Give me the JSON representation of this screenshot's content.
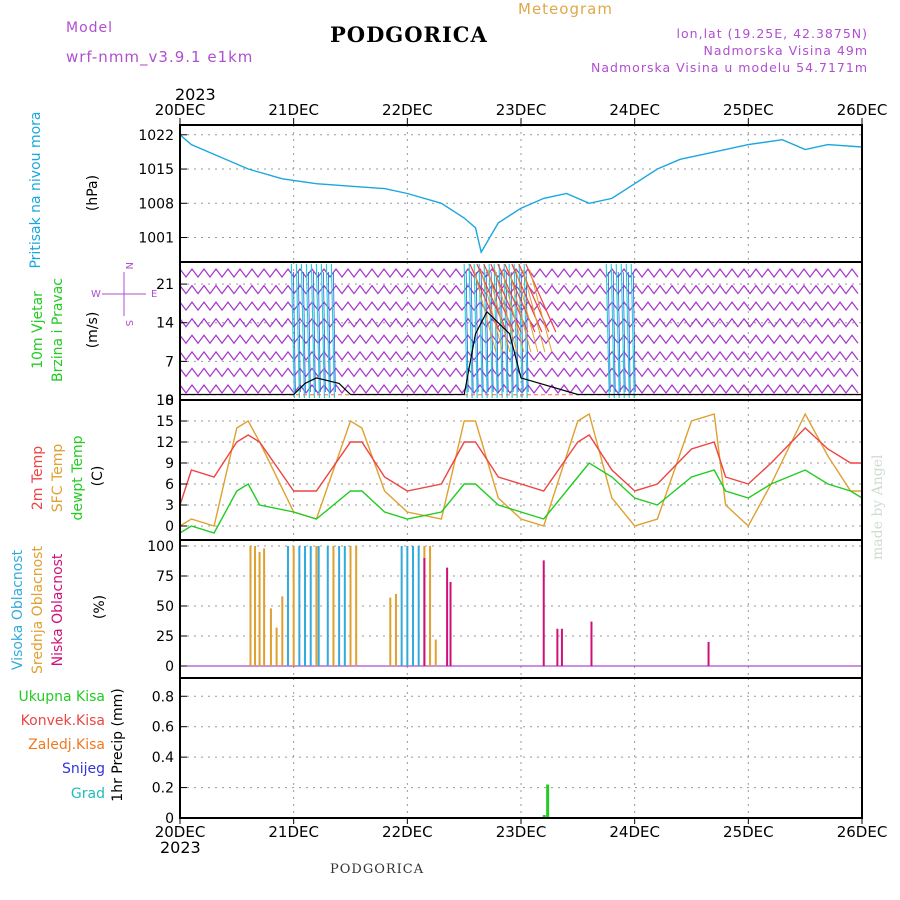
{
  "header": {
    "model_label": "Model",
    "model_name": "wrf-nmm_v3.9.1 e1km",
    "station": "PODGORICA",
    "meteogram": "Meteogram",
    "lonlat": "lon,lat (19.25E, 42.3875N)",
    "altitude": "Nadmorska Visina 49m",
    "model_altitude": "Nadmorska Visina u modelu 54.7171m"
  },
  "footer": {
    "station": "PODGORICA",
    "credit": "made by Angel"
  },
  "time_axis": {
    "year": "2023",
    "labels": [
      "20DEC",
      "21DEC",
      "22DEC",
      "23DEC",
      "24DEC",
      "25DEC",
      "26DEC"
    ]
  },
  "colors": {
    "pressure": "#1aa7e0",
    "purple": "#9a1fc4",
    "wind_cyan": "#1ad0d8",
    "wind_blue": "#2a5fe0",
    "temp2m": "#ee4444",
    "sfc": "#e0a030",
    "dew": "#22cc22",
    "cloud_high": "#33aadd",
    "cloud_mid": "#e0a030",
    "cloud_low": "#d0107a",
    "rain_total": "#22cc22",
    "rain_conv": "#ee4444",
    "rain_frozen": "#ee7a22",
    "snow": "#3333dd",
    "hail": "#22bbbb"
  },
  "panels": {
    "pressure": {
      "label1": "Pritisak na nivou mora",
      "unit": "(hPa)",
      "ticks": [
        "1022",
        "1015",
        "1008",
        "1001"
      ]
    },
    "wind": {
      "label1": "10m Vjetar",
      "label2": "Brzina i Pravac",
      "unit": "(m/s)",
      "ticks": [
        "21",
        "14",
        "7",
        "0"
      ],
      "compass": {
        "n": "N",
        "s": "S",
        "w": "W",
        "e": "E"
      }
    },
    "temp": {
      "label1": "2m Temp",
      "label2": "SFC Temp",
      "label3": "dewpt Temp",
      "unit": "(C)",
      "ticks": [
        "18",
        "15",
        "12",
        "9",
        "6",
        "3",
        "0"
      ]
    },
    "cloud": {
      "label1": "Visoka Oblacnost",
      "label2": "Srednja Oblacnost",
      "label3": "Niska Oblacnost",
      "unit": "(%)",
      "ticks": [
        "100",
        "75",
        "50",
        "25",
        "0"
      ]
    },
    "precip": {
      "legend": [
        "Ukupna Kisa",
        "Konvek.Kisa",
        "Zaledj.Kisa",
        "Snijeg",
        "Grad"
      ],
      "unit": "1hr Precip (mm)",
      "ticks": [
        "0.8",
        "0.6",
        "0.4",
        "0.2",
        "0"
      ]
    }
  },
  "chart_data": [
    {
      "type": "line",
      "title": "Pritisak na nivou mora",
      "ylabel": "(hPa)",
      "ylim": [
        996,
        1024
      ],
      "x": [
        0,
        0.1,
        0.3,
        0.6,
        0.9,
        1.2,
        1.5,
        1.8,
        2.0,
        2.3,
        2.5,
        2.6,
        2.65,
        2.7,
        2.8,
        3.0,
        3.2,
        3.4,
        3.6,
        3.8,
        4.0,
        4.2,
        4.4,
        4.6,
        5.0,
        5.3,
        5.5,
        5.7,
        6.0
      ],
      "series": [
        {
          "values": [
            1022,
            1020,
            1018,
            1015,
            1013,
            1012,
            1011.5,
            1011,
            1010,
            1008,
            1005,
            1003,
            998,
            1000,
            1004,
            1007,
            1009,
            1010,
            1008,
            1009,
            1012,
            1015,
            1017,
            1018,
            1020,
            1021,
            1019,
            1020,
            1019.5
          ]
        }
      ]
    },
    {
      "type": "line",
      "title": "10m Vjetar Brzina i Pravac",
      "ylabel": "(m/s)",
      "ylim": [
        0,
        25
      ],
      "x": [
        0,
        1.0,
        1.1,
        1.2,
        1.4,
        1.5,
        2.0,
        2.5,
        2.6,
        2.7,
        2.9,
        3.0,
        3.5,
        4.0,
        5.0,
        6.0
      ],
      "series": [
        {
          "values": [
            1,
            1,
            3,
            4,
            3,
            1,
            1,
            1,
            12,
            16,
            12,
            4,
            1,
            1,
            1,
            1
          ]
        }
      ]
    },
    {
      "type": "line",
      "title": "2m / SFC / dewpt Temp",
      "ylabel": "(C)",
      "ylim": [
        -2,
        18
      ],
      "x": [
        0,
        0.1,
        0.3,
        0.5,
        0.6,
        0.7,
        1.0,
        1.2,
        1.5,
        1.6,
        1.8,
        2.0,
        2.3,
        2.5,
        2.6,
        2.8,
        3.0,
        3.2,
        3.5,
        3.6,
        3.8,
        4.0,
        4.2,
        4.5,
        4.7,
        4.8,
        5.0,
        5.2,
        5.5,
        5.7,
        5.9,
        6.0
      ],
      "series": [
        {
          "name": "2m Temp",
          "values": [
            3,
            8,
            7,
            12,
            13,
            12,
            5,
            5,
            12,
            12,
            7,
            5,
            6,
            12,
            12,
            7,
            6,
            5,
            12,
            13,
            8,
            5,
            6,
            11,
            12,
            7,
            6,
            9,
            14,
            11,
            9,
            9
          ]
        },
        {
          "name": "SFC Temp",
          "values": [
            0,
            1,
            0,
            14,
            15,
            12,
            2,
            1,
            15,
            14,
            5,
            2,
            1,
            15,
            15,
            4,
            1,
            0,
            15,
            16,
            4,
            0,
            1,
            15,
            16,
            3,
            0,
            6,
            16,
            10,
            5,
            5
          ]
        },
        {
          "name": "dewpt Temp",
          "values": [
            -1,
            0,
            -1,
            5,
            6,
            3,
            2,
            1,
            5,
            5,
            2,
            1,
            2,
            6,
            6,
            3,
            2,
            1,
            7,
            9,
            7,
            4,
            3,
            7,
            8,
            5,
            4,
            6,
            8,
            6,
            5,
            4
          ]
        }
      ]
    },
    {
      "type": "bar",
      "title": "Oblacnost",
      "ylabel": "(%)",
      "ylim": [
        0,
        100
      ],
      "series": [
        {
          "name": "Visoka Oblacnost",
          "x": [
            0.95,
            1.05,
            1.1,
            1.15,
            1.22,
            1.3,
            1.4,
            1.45,
            1.95,
            2.0,
            2.05,
            2.1
          ],
          "values": [
            100,
            100,
            100,
            100,
            100,
            100,
            100,
            100,
            100,
            100,
            100,
            100
          ]
        },
        {
          "name": "Srednja Oblacnost",
          "x": [
            0.62,
            0.66,
            0.7,
            0.74,
            0.8,
            0.85,
            0.9,
            1.0,
            1.2,
            1.35,
            1.5,
            1.55,
            1.85,
            1.9,
            2.15,
            2.2,
            2.25
          ],
          "values": [
            100,
            100,
            95,
            98,
            48,
            32,
            58,
            100,
            100,
            100,
            100,
            100,
            57,
            60,
            100,
            100,
            22
          ]
        },
        {
          "name": "Niska Oblacnost",
          "x": [
            2.15,
            2.35,
            2.38,
            3.2,
            3.32,
            3.36,
            3.62,
            4.65
          ],
          "values": [
            90,
            82,
            70,
            88,
            31,
            31,
            37,
            20
          ]
        }
      ]
    },
    {
      "type": "bar",
      "title": "Precip",
      "ylabel": "1hr Precip (mm)",
      "ylim": [
        0,
        0.9
      ],
      "series": [
        {
          "name": "Ukupna Kisa",
          "x": [
            3.2,
            3.23
          ],
          "values": [
            0.02,
            0.22
          ]
        },
        {
          "name": "Konvek.Kisa",
          "x": [],
          "values": []
        },
        {
          "name": "Zaledj.Kisa",
          "x": [],
          "values": []
        },
        {
          "name": "Snijeg",
          "x": [],
          "values": []
        },
        {
          "name": "Grad",
          "x": [],
          "values": []
        }
      ]
    }
  ]
}
